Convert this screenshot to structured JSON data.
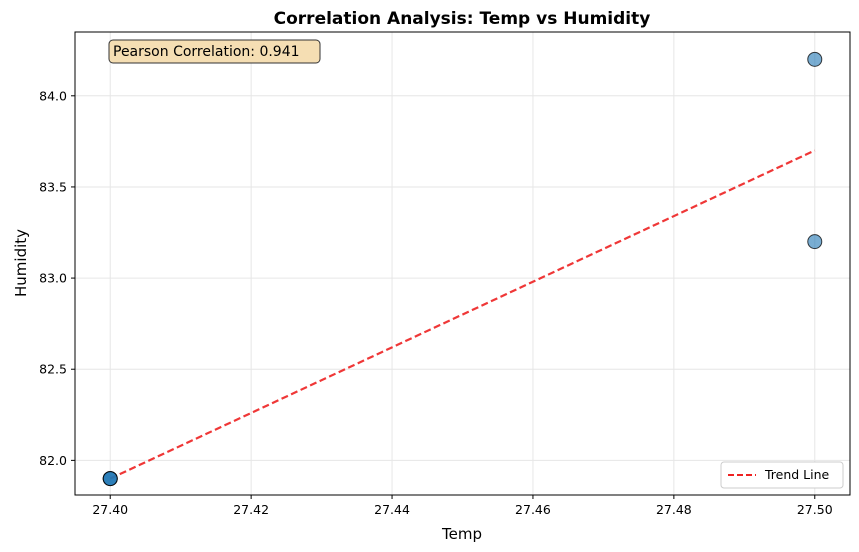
{
  "chart_data": {
    "type": "scatter",
    "title": "Correlation Analysis: Temp vs Humidity",
    "xlabel": "Temp",
    "ylabel": "Humidity",
    "xlim": [
      27.395,
      27.505
    ],
    "ylim": [
      81.81,
      84.35
    ],
    "xticks": [
      "27.40",
      "27.42",
      "27.44",
      "27.46",
      "27.48",
      "27.50"
    ],
    "yticks": [
      "82.0",
      "82.5",
      "83.0",
      "83.5",
      "84.0"
    ],
    "grid": true,
    "legend_placement": "lower-right",
    "points": [
      {
        "x": 27.4,
        "y": 81.9
      },
      {
        "x": 27.4,
        "y": 81.9
      },
      {
        "x": 27.4,
        "y": 81.9
      },
      {
        "x": 27.5,
        "y": 84.2
      },
      {
        "x": 27.5,
        "y": 83.2
      }
    ],
    "trend_line": {
      "name": "Trend Line",
      "x": [
        27.4,
        27.5
      ],
      "y": [
        81.9,
        83.7
      ]
    },
    "annotation": "Pearson Correlation: 0.941",
    "colors": {
      "points": "#1f77b4",
      "trend": "#ee2222",
      "annotation_bg": "#f5deb3",
      "grid": "#e6e6e6"
    }
  }
}
